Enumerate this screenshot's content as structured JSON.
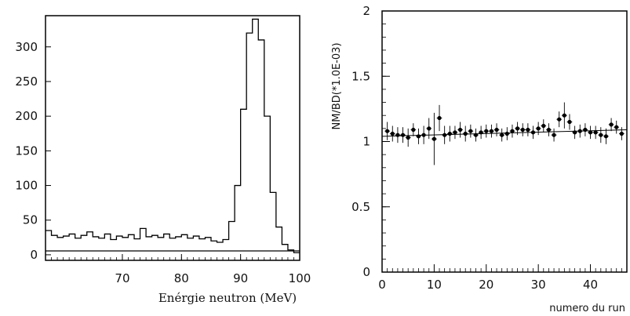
{
  "chart_data": [
    {
      "type": "line",
      "xlabel": "Enérgie neutron (MeV)",
      "ylabel": "",
      "title": "",
      "xlim": [
        57,
        100
      ],
      "ylim": [
        -8,
        345
      ],
      "xticks": [
        70,
        80,
        90,
        100
      ],
      "yticks": [
        0,
        50,
        100,
        150,
        200,
        250,
        300
      ],
      "grid": false,
      "x": [
        57.5,
        58.5,
        59.5,
        60.5,
        61.5,
        62.5,
        63.5,
        64.5,
        65.5,
        66.5,
        67.5,
        68.5,
        69.5,
        70.5,
        71.5,
        72.5,
        73.5,
        74.5,
        75.5,
        76.5,
        77.5,
        78.5,
        79.5,
        80.5,
        81.5,
        82.5,
        83.5,
        84.5,
        85.5,
        86.5,
        87.5,
        88.5,
        89.5,
        90.5,
        91.5,
        92.5,
        93.5,
        94.5,
        95.5,
        96.5,
        97.5,
        98.5,
        99.5
      ],
      "values": [
        35,
        28,
        25,
        27,
        30,
        24,
        28,
        33,
        26,
        24,
        30,
        22,
        27,
        25,
        29,
        23,
        38,
        26,
        28,
        25,
        30,
        24,
        26,
        29,
        24,
        27,
        23,
        25,
        20,
        18,
        22,
        48,
        100,
        210,
        320,
        340,
        310,
        200,
        90,
        40,
        15,
        7,
        3
      ]
    },
    {
      "type": "scatter",
      "xlabel": "numero du run",
      "ylabel": "NM/BD(*1.0E-03)",
      "title": "",
      "xlim": [
        0,
        47
      ],
      "ylim": [
        0,
        2
      ],
      "xticks": [
        0,
        10,
        20,
        30,
        40
      ],
      "yticks": [
        0,
        0.5,
        1,
        1.5,
        2
      ],
      "ytick_labels": [
        "0",
        "0.5",
        "1",
        "1.5",
        "2"
      ],
      "grid": false,
      "fit_line": [
        [
          0,
          1.04
        ],
        [
          47,
          1.09
        ]
      ],
      "x": [
        1,
        2,
        3,
        4,
        5,
        6,
        7,
        8,
        9,
        10,
        11,
        12,
        13,
        14,
        15,
        16,
        17,
        18,
        19,
        20,
        21,
        22,
        23,
        24,
        25,
        26,
        27,
        28,
        29,
        30,
        31,
        32,
        33,
        34,
        35,
        36,
        37,
        38,
        39,
        40,
        41,
        42,
        43,
        44,
        45,
        46
      ],
      "values": [
        1.08,
        1.06,
        1.05,
        1.05,
        1.03,
        1.09,
        1.04,
        1.05,
        1.1,
        1.02,
        1.18,
        1.05,
        1.06,
        1.07,
        1.09,
        1.06,
        1.08,
        1.05,
        1.07,
        1.08,
        1.08,
        1.09,
        1.05,
        1.06,
        1.08,
        1.1,
        1.09,
        1.09,
        1.07,
        1.1,
        1.12,
        1.09,
        1.05,
        1.17,
        1.2,
        1.15,
        1.07,
        1.08,
        1.09,
        1.07,
        1.07,
        1.05,
        1.04,
        1.13,
        1.11,
        1.06
      ],
      "errors": [
        0.07,
        0.06,
        0.06,
        0.06,
        0.07,
        0.05,
        0.06,
        0.07,
        0.08,
        0.2,
        0.1,
        0.07,
        0.06,
        0.05,
        0.06,
        0.06,
        0.05,
        0.05,
        0.05,
        0.05,
        0.05,
        0.05,
        0.05,
        0.05,
        0.05,
        0.05,
        0.05,
        0.05,
        0.05,
        0.05,
        0.05,
        0.05,
        0.05,
        0.06,
        0.1,
        0.06,
        0.05,
        0.05,
        0.05,
        0.05,
        0.05,
        0.06,
        0.06,
        0.05,
        0.05,
        0.05
      ]
    }
  ]
}
